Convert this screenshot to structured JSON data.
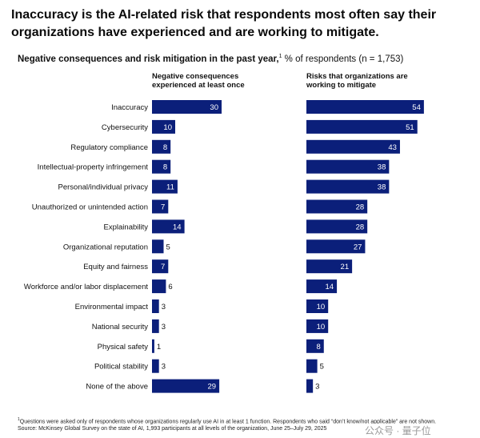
{
  "headline": "Inaccuracy is the AI-related risk that respondents most often say their organizations have experienced and are working to mitigate.",
  "subtitle": {
    "bold": "Negative consequences and risk mitigation in the past year,",
    "sup": "1",
    "rest": " % of respondents (n = 1,753)"
  },
  "colors": {
    "bar": "#0b1f7a",
    "label_inside": "#ffffff",
    "label_outside": "#111111"
  },
  "chart_data": {
    "type": "bar",
    "orientation": "horizontal",
    "categories": [
      "Inaccuracy",
      "Cybersecurity",
      "Regulatory compliance",
      "Intellectual-property infringement",
      "Personal/individual privacy",
      "Unauthorized or unintended action",
      "Explainability",
      "Organizational reputation",
      "Equity and fairness",
      "Workforce and/or labor displacement",
      "Environmental impact",
      "National security",
      "Physical safety",
      "Political stability",
      "None of the above"
    ],
    "series": [
      {
        "name": "Negative consequences experienced at least once",
        "values": [
          30,
          10,
          8,
          8,
          11,
          7,
          14,
          5,
          7,
          6,
          3,
          3,
          1,
          3,
          29
        ]
      },
      {
        "name": "Risks that organizations are working to mitigate",
        "values": [
          54,
          51,
          43,
          38,
          38,
          28,
          28,
          27,
          21,
          14,
          10,
          10,
          8,
          5,
          3
        ]
      }
    ],
    "unit": "% of respondents",
    "xlim": [
      0,
      60
    ]
  },
  "footnote": {
    "sup": "1",
    "line1": "Questions were asked only of respondents whose organizations regularly use AI in at least 1 function. Respondents who said “don’t know/not applicable” are not shown.",
    "line2": "Source: McKinsey Global Survey on the state of AI, 1,993 participants at all levels of the organization, June 25–July 29, 2025"
  },
  "watermark": "公众号 · 量子位"
}
